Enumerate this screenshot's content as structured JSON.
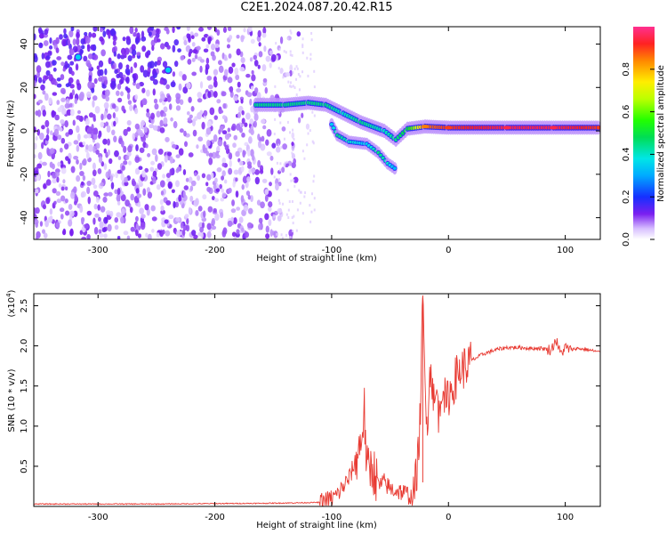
{
  "title": "C2E1.2024.087.20.42.R15",
  "colors": {
    "axis": "#000000",
    "snr_line": "#e83a32",
    "background_scatter": "#7a1ff0",
    "ridge": "#ff3030"
  },
  "chart_data": [
    {
      "type": "heatmap",
      "xlabel": "Height of straight line (km)",
      "ylabel": "Frequency (Hz)",
      "xlim": [
        -355,
        130
      ],
      "ylim": [
        -50,
        48
      ],
      "xticks": [
        {
          "value": -300,
          "label": "-300"
        },
        {
          "value": -200,
          "label": "-200"
        },
        {
          "value": -100,
          "label": "-100"
        },
        {
          "value": 0,
          "label": "0"
        },
        {
          "value": 100,
          "label": "100"
        }
      ],
      "yticks": [
        {
          "value": -40,
          "label": "-40"
        },
        {
          "value": -20,
          "label": "-20"
        },
        {
          "value": 0,
          "label": "0"
        },
        {
          "value": 20,
          "label": "20"
        },
        {
          "value": 40,
          "label": "40"
        }
      ],
      "colorbar": {
        "label": "Normalized spectral amplitude",
        "range": [
          0,
          1
        ],
        "ticks": [
          {
            "value": 0.0,
            "label": "0.0"
          },
          {
            "value": 0.2,
            "label": "0.2"
          },
          {
            "value": 0.4,
            "label": "0.4"
          },
          {
            "value": 0.6,
            "label": "0.6"
          },
          {
            "value": 0.8,
            "label": "0.8"
          }
        ]
      },
      "ridge": [
        {
          "x": -165,
          "y": 12,
          "a": 0.45
        },
        {
          "x": -140,
          "y": 12,
          "a": 0.45
        },
        {
          "x": -120,
          "y": 13,
          "a": 0.45
        },
        {
          "x": -105,
          "y": 12,
          "a": 0.45
        },
        {
          "x": -90,
          "y": 8,
          "a": 0.4
        },
        {
          "x": -75,
          "y": 4,
          "a": 0.45
        },
        {
          "x": -55,
          "y": 0,
          "a": 0.4
        },
        {
          "x": -45,
          "y": -4,
          "a": 0.45
        },
        {
          "x": -35,
          "y": 1,
          "a": 0.5
        },
        {
          "x": -20,
          "y": 2,
          "a": 0.85
        },
        {
          "x": 0,
          "y": 1.5,
          "a": 0.9
        },
        {
          "x": 50,
          "y": 1.5,
          "a": 0.95
        },
        {
          "x": 90,
          "y": 1.5,
          "a": 0.95
        },
        {
          "x": 130,
          "y": 1.5,
          "a": 0.9
        }
      ],
      "lower_branch": [
        {
          "x": -100,
          "y": 3,
          "a": 0.35
        },
        {
          "x": -95,
          "y": -2,
          "a": 0.45
        },
        {
          "x": -85,
          "y": -5,
          "a": 0.4
        },
        {
          "x": -70,
          "y": -6,
          "a": 0.35
        },
        {
          "x": -60,
          "y": -10,
          "a": 0.45
        },
        {
          "x": -52,
          "y": -15,
          "a": 0.4
        },
        {
          "x": -44,
          "y": -18,
          "a": 0.3
        }
      ],
      "hotspots": [
        {
          "x": -317,
          "y": 34,
          "a": 0.35
        },
        {
          "x": -240,
          "y": 28,
          "a": 0.35
        }
      ]
    },
    {
      "type": "line",
      "xlabel": "Height of straight line (km)",
      "ylabel": "SNR (10 * v/v)",
      "yscale_label": "(x10",
      "yscale_exponent": "4",
      "yscale_close": ")",
      "xlim": [
        -355,
        130
      ],
      "ylim": [
        0,
        2.65
      ],
      "xticks": [
        {
          "value": -300,
          "label": "-300"
        },
        {
          "value": -200,
          "label": "-200"
        },
        {
          "value": -100,
          "label": "-100"
        },
        {
          "value": 0,
          "label": "0"
        },
        {
          "value": 100,
          "label": "100"
        }
      ],
      "yticks": [
        {
          "value": 0.5,
          "label": "0.5"
        },
        {
          "value": 1.0,
          "label": "1.0"
        },
        {
          "value": 1.5,
          "label": "1.5"
        },
        {
          "value": 2.0,
          "label": "2.0"
        },
        {
          "value": 2.5,
          "label": "2.5"
        }
      ],
      "series": [
        {
          "x": [
            -355,
            -300,
            -250,
            -200,
            -150,
            -110,
            -100,
            -95,
            -90,
            -85,
            -80,
            -75,
            -72,
            -70,
            -65,
            -60,
            -55,
            -50,
            -45,
            -40,
            -35,
            -30,
            -26,
            -24,
            -22,
            -20,
            -18,
            -15,
            -12,
            -10,
            -8,
            -5,
            -2,
            0,
            3,
            6,
            10,
            15,
            20,
            30,
            40,
            50,
            60,
            70,
            80,
            88,
            92,
            96,
            100,
            105,
            110,
            120,
            130
          ],
          "values": [
            0.03,
            0.03,
            0.03,
            0.035,
            0.04,
            0.05,
            0.1,
            0.15,
            0.25,
            0.35,
            0.55,
            0.8,
            1.2,
            0.45,
            0.5,
            0.25,
            0.3,
            0.22,
            0.2,
            0.18,
            0.15,
            0.1,
            0.6,
            1.2,
            2.6,
            1.5,
            1.1,
            1.8,
            1.2,
            1.45,
            1.1,
            1.6,
            1.2,
            1.4,
            1.45,
            1.6,
            1.7,
            1.75,
            1.82,
            1.9,
            1.95,
            1.98,
            1.98,
            1.97,
            1.97,
            1.95,
            2.08,
            1.9,
            1.98,
            1.95,
            1.97,
            1.95,
            1.92
          ]
        }
      ]
    }
  ]
}
